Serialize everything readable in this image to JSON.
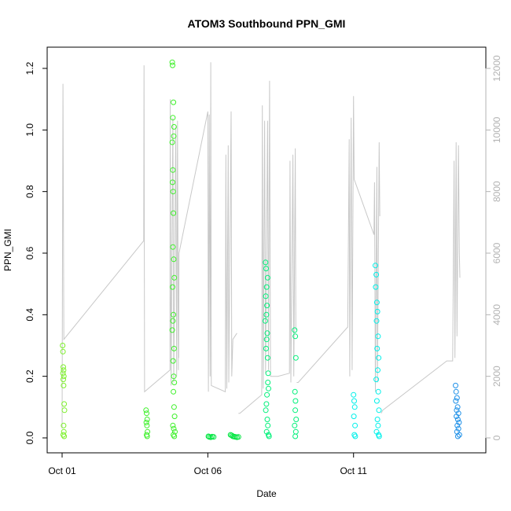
{
  "chart_data": {
    "type": "scatter",
    "title": "ATOM3 Southbound PPN_GMI",
    "xlabel": "Date",
    "ylabel": "PPN_GMI",
    "x_ticks": [
      "Oct 01",
      "Oct 06",
      "Oct 11"
    ],
    "x_tick_days": [
      1,
      6,
      11
    ],
    "xlim": [
      1,
      15
    ],
    "ylim": [
      0,
      1.2
    ],
    "y_ticks": [
      0.0,
      0.2,
      0.4,
      0.6,
      0.8,
      1.0,
      1.2
    ],
    "y_tick_labels": [
      "0.0",
      "0.2",
      "0.4",
      "0.6",
      "0.8",
      "1.0",
      "1.2"
    ],
    "y2lim": [
      0,
      12000
    ],
    "y2_ticks": [
      0,
      2000,
      4000,
      6000,
      8000,
      10000,
      12000
    ],
    "y2_tick_labels": [
      "0",
      "2000",
      "4000",
      "6000",
      "8000",
      "10000",
      "12000"
    ],
    "grid": false,
    "colors": {
      "line": "#c8c8c8",
      "right_axis": "#b3b3b3"
    },
    "series": [
      {
        "color": "#7cf02a",
        "points": [
          [
            1.02,
            0.3
          ],
          [
            1.03,
            0.28
          ],
          [
            1.04,
            0.23
          ],
          [
            1.05,
            0.22
          ],
          [
            1.03,
            0.21
          ],
          [
            1.06,
            0.2
          ],
          [
            1.04,
            0.19
          ],
          [
            1.05,
            0.17
          ],
          [
            1.07,
            0.11
          ],
          [
            1.08,
            0.09
          ],
          [
            1.05,
            0.04
          ],
          [
            1.06,
            0.02
          ],
          [
            1.04,
            0.01
          ],
          [
            1.07,
            0.005
          ]
        ]
      },
      {
        "color": "#3ef02a",
        "points": [
          [
            3.88,
            0.09
          ],
          [
            3.9,
            0.08
          ],
          [
            3.92,
            0.06
          ],
          [
            3.89,
            0.05
          ],
          [
            3.91,
            0.04
          ],
          [
            3.93,
            0.02
          ],
          [
            3.9,
            0.01
          ],
          [
            3.92,
            0.005
          ],
          [
            4.78,
            1.22
          ],
          [
            4.79,
            1.21
          ],
          [
            4.82,
            1.09
          ],
          [
            4.8,
            1.04
          ],
          [
            4.84,
            1.01
          ],
          [
            4.83,
            0.98
          ],
          [
            4.78,
            0.96
          ],
          [
            4.8,
            0.87
          ],
          [
            4.79,
            0.83
          ],
          [
            4.81,
            0.8
          ],
          [
            4.82,
            0.73
          ],
          [
            4.8,
            0.62
          ],
          [
            4.83,
            0.58
          ],
          [
            4.85,
            0.52
          ],
          [
            4.79,
            0.49
          ],
          [
            4.82,
            0.4
          ],
          [
            4.8,
            0.38
          ],
          [
            4.78,
            0.35
          ],
          [
            4.84,
            0.29
          ],
          [
            4.81,
            0.25
          ],
          [
            4.83,
            0.2
          ],
          [
            4.85,
            0.18
          ],
          [
            4.82,
            0.15
          ],
          [
            4.84,
            0.1
          ],
          [
            4.86,
            0.07
          ],
          [
            4.8,
            0.04
          ],
          [
            4.83,
            0.03
          ],
          [
            4.87,
            0.02
          ],
          [
            4.82,
            0.01
          ],
          [
            4.85,
            0.005
          ]
        ]
      },
      {
        "color": "#00e640",
        "points": [
          [
            6.02,
            0.005
          ],
          [
            6.05,
            0.003
          ],
          [
            6.1,
            0.002
          ],
          [
            6.15,
            0.004
          ],
          [
            6.2,
            0.003
          ],
          [
            6.78,
            0.01
          ],
          [
            6.82,
            0.008
          ],
          [
            6.86,
            0.005
          ],
          [
            6.9,
            0.004
          ],
          [
            6.95,
            0.003
          ],
          [
            7.0,
            0.002
          ],
          [
            7.05,
            0.003
          ]
        ]
      },
      {
        "color": "#00f07a",
        "points": [
          [
            7.98,
            0.57
          ],
          [
            8.0,
            0.55
          ],
          [
            8.05,
            0.52
          ],
          [
            8.02,
            0.49
          ],
          [
            7.99,
            0.46
          ],
          [
            8.03,
            0.43
          ],
          [
            8.01,
            0.4
          ],
          [
            7.97,
            0.38
          ],
          [
            8.04,
            0.34
          ],
          [
            8.02,
            0.32
          ],
          [
            8.0,
            0.29
          ],
          [
            8.05,
            0.26
          ],
          [
            8.07,
            0.21
          ],
          [
            8.06,
            0.18
          ],
          [
            8.08,
            0.16
          ],
          [
            8.03,
            0.14
          ],
          [
            8.01,
            0.11
          ],
          [
            7.99,
            0.09
          ],
          [
            8.04,
            0.06
          ],
          [
            8.06,
            0.04
          ],
          [
            8.02,
            0.02
          ],
          [
            8.08,
            0.01
          ],
          [
            8.1,
            0.005
          ],
          [
            8.98,
            0.35
          ],
          [
            9.0,
            0.33
          ],
          [
            9.02,
            0.26
          ],
          [
            8.99,
            0.15
          ],
          [
            9.01,
            0.12
          ],
          [
            9.0,
            0.09
          ],
          [
            9.03,
            0.06
          ],
          [
            8.98,
            0.04
          ],
          [
            9.02,
            0.02
          ],
          [
            9.0,
            0.005
          ]
        ]
      },
      {
        "color": "#00f0ea",
        "points": [
          [
            11.0,
            0.14
          ],
          [
            11.02,
            0.12
          ],
          [
            11.04,
            0.1
          ],
          [
            11.01,
            0.07
          ],
          [
            11.05,
            0.04
          ],
          [
            11.03,
            0.01
          ],
          [
            11.06,
            0.005
          ],
          [
            11.75,
            0.56
          ],
          [
            11.78,
            0.53
          ],
          [
            11.76,
            0.49
          ],
          [
            11.8,
            0.44
          ],
          [
            11.82,
            0.41
          ],
          [
            11.79,
            0.38
          ],
          [
            11.84,
            0.33
          ],
          [
            11.81,
            0.29
          ],
          [
            11.86,
            0.26
          ],
          [
            11.83,
            0.22
          ],
          [
            11.78,
            0.19
          ],
          [
            11.85,
            0.15
          ],
          [
            11.8,
            0.12
          ],
          [
            11.87,
            0.09
          ],
          [
            11.82,
            0.06
          ],
          [
            11.84,
            0.04
          ],
          [
            11.79,
            0.02
          ],
          [
            11.86,
            0.01
          ],
          [
            11.88,
            0.005
          ]
        ]
      },
      {
        "color": "#1e90e8",
        "points": [
          [
            14.5,
            0.17
          ],
          [
            14.52,
            0.15
          ],
          [
            14.55,
            0.13
          ],
          [
            14.51,
            0.12
          ],
          [
            14.57,
            0.1
          ],
          [
            14.54,
            0.09
          ],
          [
            14.6,
            0.08
          ],
          [
            14.53,
            0.07
          ],
          [
            14.58,
            0.06
          ],
          [
            14.62,
            0.05
          ],
          [
            14.56,
            0.04
          ],
          [
            14.6,
            0.03
          ],
          [
            14.55,
            0.02
          ],
          [
            14.63,
            0.01
          ],
          [
            14.58,
            0.005
          ]
        ]
      }
    ],
    "line_series": [
      [
        [
          1.0,
          300
        ],
        [
          1.01,
          5000
        ],
        [
          1.03,
          11500
        ],
        [
          1.06,
          3200
        ],
        [
          3.8,
          6400
        ],
        [
          3.81,
          12100
        ],
        [
          3.83,
          1500
        ],
        [
          4.7,
          2200
        ],
        [
          4.71,
          11000
        ],
        [
          4.74,
          1700
        ],
        [
          4.8,
          10400
        ],
        [
          4.83,
          1800
        ],
        [
          4.9,
          10100
        ],
        [
          4.93,
          2000
        ],
        [
          4.96,
          10300
        ],
        [
          4.99,
          2200
        ]
      ],
      [
        [
          5.0,
          2600
        ],
        [
          5.01,
          6000
        ],
        [
          6.0,
          10600
        ],
        [
          6.02,
          1500
        ],
        [
          6.05,
          10500
        ],
        [
          6.08,
          2000
        ],
        [
          6.1,
          12200
        ],
        [
          6.12,
          1700
        ],
        [
          6.6,
          1500
        ],
        [
          6.62,
          9200
        ],
        [
          6.65,
          1600
        ],
        [
          6.7,
          9500
        ],
        [
          6.72,
          1800
        ],
        [
          6.8,
          10600
        ],
        [
          6.82,
          2000
        ],
        [
          6.86,
          3200
        ],
        [
          7.0,
          3400
        ]
      ],
      [
        [
          7.05,
          800
        ],
        [
          7.1,
          800
        ],
        [
          7.85,
          1400
        ],
        [
          7.87,
          10800
        ],
        [
          7.9,
          1600
        ],
        [
          7.95,
          10300
        ],
        [
          7.98,
          2100
        ],
        [
          8.05,
          10300
        ],
        [
          8.08,
          2200
        ],
        [
          8.12,
          11600
        ],
        [
          8.15,
          2000
        ],
        [
          8.4,
          2000
        ],
        [
          8.8,
          2100
        ],
        [
          8.82,
          9000
        ],
        [
          8.85,
          1800
        ],
        [
          8.92,
          9200
        ],
        [
          8.95,
          2000
        ],
        [
          9.0,
          9400
        ],
        [
          9.02,
          3500
        ]
      ],
      [
        [
          9.05,
          1800
        ],
        [
          9.1,
          1800
        ],
        [
          10.8,
          3600
        ],
        [
          10.85,
          9700
        ],
        [
          10.87,
          2000
        ],
        [
          10.92,
          10400
        ],
        [
          10.95,
          2200
        ],
        [
          11.0,
          11100
        ],
        [
          11.02,
          8400
        ],
        [
          11.7,
          6600
        ],
        [
          11.72,
          8300
        ],
        [
          11.75,
          1500
        ],
        [
          11.8,
          8800
        ],
        [
          11.82,
          1800
        ],
        [
          11.88,
          9600
        ],
        [
          11.9,
          7200
        ]
      ],
      [
        [
          11.95,
          800
        ],
        [
          12.0,
          900
        ],
        [
          14.2,
          2500
        ],
        [
          14.4,
          2500
        ],
        [
          14.45,
          9000
        ],
        [
          14.48,
          2600
        ],
        [
          14.52,
          9600
        ],
        [
          14.55,
          3300
        ],
        [
          14.6,
          9500
        ],
        [
          14.63,
          6000
        ],
        [
          14.65,
          5200
        ]
      ]
    ]
  }
}
